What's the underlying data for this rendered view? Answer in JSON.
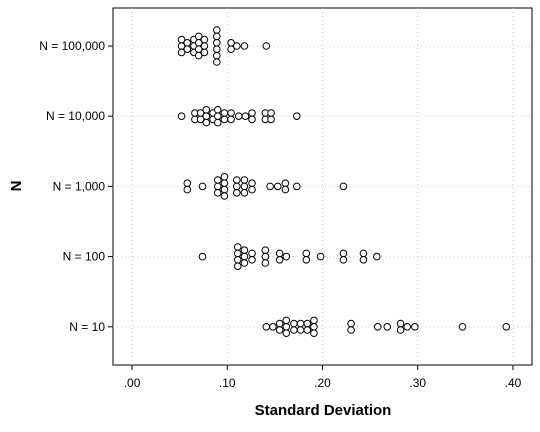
{
  "chart_data": {
    "type": "scatter",
    "subtype": "dot plot",
    "xlabel": "Standard Deviation",
    "ylabel": "N",
    "xlim": [
      -0.02,
      0.42
    ],
    "x_ticks": [
      0,
      0.1,
      0.2,
      0.3,
      0.4
    ],
    "x_tick_labels": [
      ".00",
      ".10",
      ".20",
      ".30",
      ".40"
    ],
    "grid": true,
    "grid_style": "dotted",
    "marker": "open circle",
    "categories": [
      "N = 100,000",
      "N = 10,000",
      "N = 1,000",
      "N = 100",
      "N = 10"
    ],
    "series": [
      {
        "category": "N = 100,000",
        "points": [
          {
            "x": 0.052,
            "count": 3
          },
          {
            "x": 0.058,
            "count": 2
          },
          {
            "x": 0.065,
            "count": 3
          },
          {
            "x": 0.07,
            "count": 4
          },
          {
            "x": 0.076,
            "count": 3
          },
          {
            "x": 0.089,
            "count": 6
          },
          {
            "x": 0.104,
            "count": 2
          },
          {
            "x": 0.11,
            "count": 1
          },
          {
            "x": 0.118,
            "count": 1
          },
          {
            "x": 0.141,
            "count": 1
          }
        ]
      },
      {
        "category": "N = 10,000",
        "points": [
          {
            "x": 0.052,
            "count": 1
          },
          {
            "x": 0.066,
            "count": 2
          },
          {
            "x": 0.072,
            "count": 2
          },
          {
            "x": 0.078,
            "count": 3
          },
          {
            "x": 0.085,
            "count": 2
          },
          {
            "x": 0.09,
            "count": 3
          },
          {
            "x": 0.097,
            "count": 2
          },
          {
            "x": 0.104,
            "count": 2
          },
          {
            "x": 0.112,
            "count": 1
          },
          {
            "x": 0.119,
            "count": 1
          },
          {
            "x": 0.126,
            "count": 2
          },
          {
            "x": 0.14,
            "count": 2
          },
          {
            "x": 0.146,
            "count": 2
          },
          {
            "x": 0.173,
            "count": 1
          }
        ]
      },
      {
        "category": "N = 1,000",
        "points": [
          {
            "x": 0.058,
            "count": 2
          },
          {
            "x": 0.074,
            "count": 1
          },
          {
            "x": 0.09,
            "count": 3
          },
          {
            "x": 0.097,
            "count": 4
          },
          {
            "x": 0.11,
            "count": 3
          },
          {
            "x": 0.118,
            "count": 3
          },
          {
            "x": 0.126,
            "count": 2
          },
          {
            "x": 0.145,
            "count": 1
          },
          {
            "x": 0.153,
            "count": 1
          },
          {
            "x": 0.161,
            "count": 2
          },
          {
            "x": 0.173,
            "count": 1
          },
          {
            "x": 0.222,
            "count": 1
          }
        ]
      },
      {
        "category": "N = 100",
        "points": [
          {
            "x": 0.074,
            "count": 1
          },
          {
            "x": 0.111,
            "count": 4
          },
          {
            "x": 0.118,
            "count": 3
          },
          {
            "x": 0.126,
            "count": 2
          },
          {
            "x": 0.14,
            "count": 3
          },
          {
            "x": 0.155,
            "count": 2
          },
          {
            "x": 0.162,
            "count": 1
          },
          {
            "x": 0.183,
            "count": 2
          },
          {
            "x": 0.198,
            "count": 1
          },
          {
            "x": 0.222,
            "count": 2
          },
          {
            "x": 0.243,
            "count": 2
          },
          {
            "x": 0.257,
            "count": 1
          }
        ]
      },
      {
        "category": "N = 10",
        "points": [
          {
            "x": 0.141,
            "count": 1
          },
          {
            "x": 0.148,
            "count": 1
          },
          {
            "x": 0.155,
            "count": 2
          },
          {
            "x": 0.162,
            "count": 3
          },
          {
            "x": 0.17,
            "count": 2
          },
          {
            "x": 0.177,
            "count": 2
          },
          {
            "x": 0.184,
            "count": 2
          },
          {
            "x": 0.191,
            "count": 3
          },
          {
            "x": 0.23,
            "count": 2
          },
          {
            "x": 0.258,
            "count": 1
          },
          {
            "x": 0.268,
            "count": 1
          },
          {
            "x": 0.282,
            "count": 2
          },
          {
            "x": 0.289,
            "count": 1
          },
          {
            "x": 0.297,
            "count": 1
          },
          {
            "x": 0.347,
            "count": 1
          },
          {
            "x": 0.393,
            "count": 1
          }
        ]
      }
    ]
  }
}
